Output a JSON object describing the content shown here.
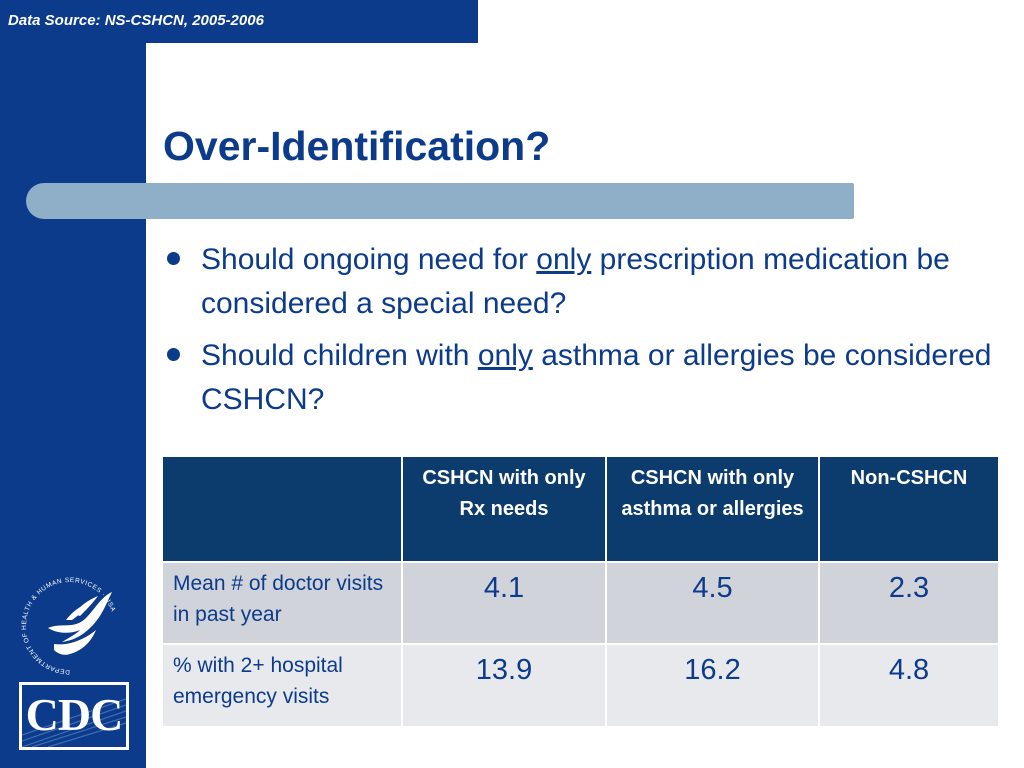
{
  "data_source": "Data Source: NS-CSHCN, 2005-2006",
  "title": "Over-Identification?",
  "bullets": [
    {
      "before": "Should ongoing need for ",
      "underlined": "only",
      "after": " prescription medication be considered a special need?"
    },
    {
      "before": "Should children with ",
      "underlined": "only",
      "after": " asthma or allergies be considered CSHCN?"
    }
  ],
  "table": {
    "headers": [
      "",
      "CSHCN with only Rx needs",
      "CSHCN with only asthma or allergies",
      "Non-CSHCN"
    ],
    "rows": [
      {
        "label": "Mean # of doctor visits in past year",
        "values": [
          "4.1",
          "4.5",
          "2.3"
        ]
      },
      {
        "label": "% with 2+ hospital emergency visits",
        "values": [
          "13.9",
          "16.2",
          "4.8"
        ]
      }
    ]
  },
  "logos": {
    "seal_text": "DEPARTMENT OF HEALTH & HUMAN SERVICES · USA",
    "cdc": "CDC"
  },
  "colors": {
    "frame_blue": "#0c3b8c",
    "table_header": "#0c3b6e",
    "title_bar": "#8eafc7",
    "row_dark": "#d0d3d9",
    "row_light": "#e8e9ec"
  }
}
